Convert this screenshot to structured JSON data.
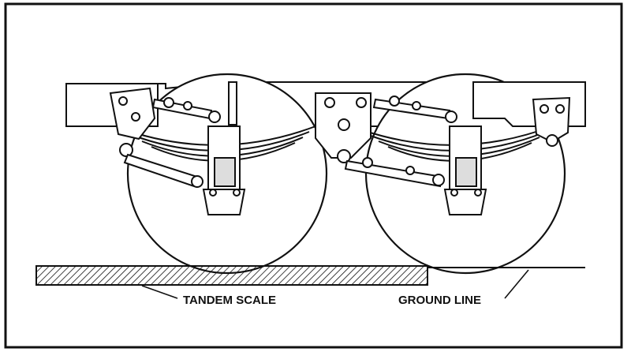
{
  "labels": {
    "tandem_scale": "TANDEM SCALE",
    "ground_line": "GROUND LINE"
  },
  "colors": {
    "ink": "#111111",
    "paper": "#ffffff"
  }
}
